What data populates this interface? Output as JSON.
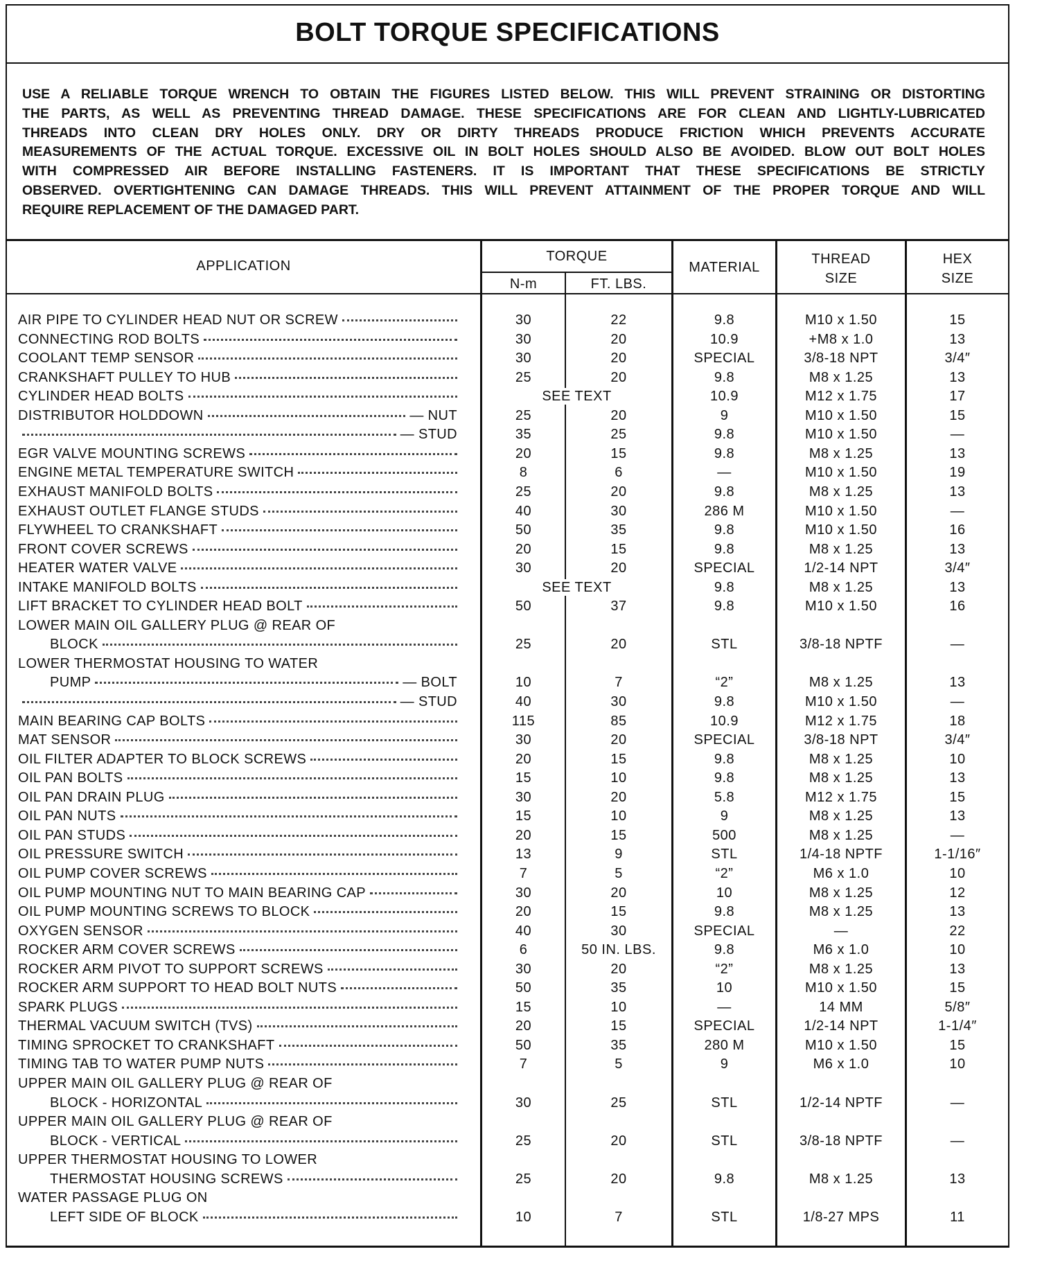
{
  "header": {
    "title": "BOLT TORQUE SPECIFICATIONS",
    "intro": [
      "USE A RELIABLE TORQUE WRENCH TO OBTAIN THE FIGURES LISTED BELOW. THIS WILL PREVENT STRAINING OR DISTORTING",
      "THE PARTS, AS WELL AS PREVENTING THREAD DAMAGE. THESE SPECIFICATIONS ARE FOR CLEAN AND LIGHTLY-LUBRICATED",
      "THREADS INTO CLEAN DRY HOLES ONLY. DRY OR DIRTY THREADS PRODUCE FRICTION WHICH PREVENTS ACCURATE",
      "MEASUREMENTS OF THE ACTUAL TORQUE. EXCESSIVE OIL IN BOLT HOLES SHOULD ALSO BE AVOIDED. BLOW OUT BOLT HOLES",
      "WITH COMPRESSED AIR BEFORE INSTALLING FASTENERS. IT IS IMPORTANT THAT THESE SPECIFICATIONS BE STRICTLY",
      "OBSERVED. OVERTIGHTENING CAN DAMAGE THREADS. THIS WILL PREVENT ATTAINMENT OF THE PROPER TORQUE AND WILL",
      "REQUIRE REPLACEMENT OF THE DAMAGED PART."
    ]
  },
  "table": {
    "columns": {
      "application": "APPLICATION",
      "torque": "TORQUE",
      "nm": "N-m",
      "ft_lbs": "FT. LBS.",
      "material": "MATERIAL",
      "thread_size": [
        "THREAD",
        "SIZE"
      ],
      "hex_size": [
        "HEX",
        "SIZE"
      ]
    },
    "rows": [
      {
        "application": [
          "AIR PIPE TO CYLINDER HEAD NUT OR SCREW"
        ],
        "nm": "30",
        "ft_lbs": "22",
        "material": "9.8",
        "thread_size": "M10 x 1.50",
        "hex_size": "15"
      },
      {
        "application": [
          "CONNECTING ROD BOLTS"
        ],
        "nm": "30",
        "ft_lbs": "20",
        "material": "10.9",
        "thread_size": "+M8 x 1.0",
        "hex_size": "13"
      },
      {
        "application": [
          "COOLANT TEMP SENSOR"
        ],
        "nm": "30",
        "ft_lbs": "20",
        "material": "SPECIAL",
        "thread_size": "3/8-18 NPT",
        "hex_size": "3/4″"
      },
      {
        "application": [
          "CRANKSHAFT PULLEY TO HUB"
        ],
        "nm": "25",
        "ft_lbs": "20",
        "material": "9.8",
        "thread_size": "M8 x 1.25",
        "hex_size": "13"
      },
      {
        "application": [
          "CYLINDER HEAD BOLTS"
        ],
        "torque": "SEE TEXT",
        "material": "10.9",
        "thread_size": "M12 x 1.75",
        "hex_size": "17"
      },
      {
        "application": [
          "DISTRIBUTOR HOLDDOWN"
        ],
        "part": "— NUT",
        "nm": "25",
        "ft_lbs": "20",
        "material": "9",
        "thread_size": "M10 x 1.50",
        "hex_size": "15"
      },
      {
        "part": "— STUD",
        "nm": "35",
        "ft_lbs": "25",
        "material": "9.8",
        "thread_size": "M10 x 1.50",
        "hex_size": "—"
      },
      {
        "application": [
          "EGR VALVE MOUNTING SCREWS"
        ],
        "nm": "20",
        "ft_lbs": "15",
        "material": "9.8",
        "thread_size": "M8 x 1.25",
        "hex_size": "13"
      },
      {
        "application": [
          "ENGINE METAL TEMPERATURE SWITCH"
        ],
        "nm": "8",
        "ft_lbs": "6",
        "material": "—",
        "thread_size": "M10 x 1.50",
        "hex_size": "19"
      },
      {
        "application": [
          "EXHAUST MANIFOLD BOLTS"
        ],
        "nm": "25",
        "ft_lbs": "20",
        "material": "9.8",
        "thread_size": "M8 x 1.25",
        "hex_size": "13"
      },
      {
        "application": [
          "EXHAUST OUTLET FLANGE STUDS"
        ],
        "nm": "40",
        "ft_lbs": "30",
        "material": "286 M",
        "thread_size": "M10 x 1.50",
        "hex_size": "—"
      },
      {
        "application": [
          "FLYWHEEL TO CRANKSHAFT"
        ],
        "nm": "50",
        "ft_lbs": "35",
        "material": "9.8",
        "thread_size": "M10 x 1.50",
        "hex_size": "16"
      },
      {
        "application": [
          "FRONT COVER SCREWS"
        ],
        "nm": "20",
        "ft_lbs": "15",
        "material": "9.8",
        "thread_size": "M8 x 1.25",
        "hex_size": "13"
      },
      {
        "application": [
          "HEATER WATER VALVE"
        ],
        "nm": "30",
        "ft_lbs": "20",
        "material": "SPECIAL",
        "thread_size": "1/2-14 NPT",
        "hex_size": "3/4″"
      },
      {
        "application": [
          "INTAKE MANIFOLD BOLTS"
        ],
        "torque": "SEE TEXT",
        "material": "9.8",
        "thread_size": "M8 x 1.25",
        "hex_size": "13"
      },
      {
        "application": [
          "LIFT BRACKET TO CYLINDER HEAD BOLT"
        ],
        "nm": "50",
        "ft_lbs": "37",
        "material": "9.8",
        "thread_size": "M10 x 1.50",
        "hex_size": "16"
      },
      {
        "application": [
          "LOWER MAIN OIL GALLERY PLUG @ REAR OF",
          "BLOCK"
        ],
        "nm": "25",
        "ft_lbs": "20",
        "material": "STL",
        "thread_size": "3/8-18 NPTF",
        "hex_size": "—"
      },
      {
        "application": [
          "LOWER THERMOSTAT HOUSING TO WATER",
          "PUMP"
        ],
        "part": "— BOLT",
        "nm": "10",
        "ft_lbs": "7",
        "material": "“2”",
        "thread_size": "M8 x 1.25",
        "hex_size": "13"
      },
      {
        "part": "— STUD",
        "nm": "40",
        "ft_lbs": "30",
        "material": "9.8",
        "thread_size": "M10 x 1.50",
        "hex_size": "—"
      },
      {
        "application": [
          "MAIN BEARING CAP BOLTS"
        ],
        "nm": "115",
        "ft_lbs": "85",
        "material": "10.9",
        "thread_size": "M12 x 1.75",
        "hex_size": "18"
      },
      {
        "application": [
          "MAT SENSOR"
        ],
        "nm": "30",
        "ft_lbs": "20",
        "material": "SPECIAL",
        "thread_size": "3/8-18 NPT",
        "hex_size": "3/4″"
      },
      {
        "application": [
          "OIL FILTER ADAPTER TO BLOCK SCREWS"
        ],
        "nm": "20",
        "ft_lbs": "15",
        "material": "9.8",
        "thread_size": "M8 x 1.25",
        "hex_size": "10"
      },
      {
        "application": [
          "OIL PAN BOLTS"
        ],
        "nm": "15",
        "ft_lbs": "10",
        "material": "9.8",
        "thread_size": "M8 x 1.25",
        "hex_size": "13"
      },
      {
        "application": [
          "OIL PAN DRAIN PLUG"
        ],
        "nm": "30",
        "ft_lbs": "20",
        "material": "5.8",
        "thread_size": "M12 x 1.75",
        "hex_size": "15"
      },
      {
        "application": [
          "OIL PAN NUTS"
        ],
        "nm": "15",
        "ft_lbs": "10",
        "material": "9",
        "thread_size": "M8 x 1.25",
        "hex_size": "13"
      },
      {
        "application": [
          "OIL PAN STUDS"
        ],
        "nm": "20",
        "ft_lbs": "15",
        "material": "500",
        "thread_size": "M8 x 1.25",
        "hex_size": "—"
      },
      {
        "application": [
          "OIL PRESSURE SWITCH"
        ],
        "nm": "13",
        "ft_lbs": "9",
        "material": "STL",
        "thread_size": "1/4-18 NPTF",
        "hex_size": "1-1/16″"
      },
      {
        "application": [
          "OIL PUMP COVER SCREWS"
        ],
        "nm": "7",
        "ft_lbs": "5",
        "material": "“2”",
        "thread_size": "M6 x 1.0",
        "hex_size": "10"
      },
      {
        "application": [
          "OIL PUMP MOUNTING NUT TO MAIN BEARING CAP"
        ],
        "nm": "30",
        "ft_lbs": "20",
        "material": "10",
        "thread_size": "M8 x 1.25",
        "hex_size": "12"
      },
      {
        "application": [
          "OIL PUMP MOUNTING SCREWS TO BLOCK"
        ],
        "nm": "20",
        "ft_lbs": "15",
        "material": "9.8",
        "thread_size": "M8 x 1.25",
        "hex_size": "13"
      },
      {
        "application": [
          "OXYGEN SENSOR"
        ],
        "nm": "40",
        "ft_lbs": "30",
        "material": "SPECIAL",
        "thread_size": "—",
        "hex_size": "22"
      },
      {
        "application": [
          "ROCKER ARM COVER SCREWS"
        ],
        "nm": "6",
        "ft_lbs": "50 IN. LBS.",
        "material": "9.8",
        "thread_size": "M6 x 1.0",
        "hex_size": "10"
      },
      {
        "application": [
          "ROCKER ARM PIVOT TO SUPPORT SCREWS"
        ],
        "nm": "30",
        "ft_lbs": "20",
        "material": "“2”",
        "thread_size": "M8 x 1.25",
        "hex_size": "13"
      },
      {
        "application": [
          "ROCKER ARM SUPPORT TO HEAD BOLT NUTS"
        ],
        "nm": "50",
        "ft_lbs": "35",
        "material": "10",
        "thread_size": "M10 x 1.50",
        "hex_size": "15"
      },
      {
        "application": [
          "SPARK PLUGS"
        ],
        "nm": "15",
        "ft_lbs": "10",
        "material": "—",
        "thread_size": "14 MM",
        "hex_size": "5/8″"
      },
      {
        "application": [
          "THERMAL VACUUM SWITCH (TVS)"
        ],
        "nm": "20",
        "ft_lbs": "15",
        "material": "SPECIAL",
        "thread_size": "1/2-14 NPT",
        "hex_size": "1-1/4″"
      },
      {
        "application": [
          "TIMING SPROCKET TO CRANKSHAFT"
        ],
        "nm": "50",
        "ft_lbs": "35",
        "material": "280 M",
        "thread_size": "M10 x 1.50",
        "hex_size": "15"
      },
      {
        "application": [
          "TIMING TAB TO WATER PUMP NUTS"
        ],
        "nm": "7",
        "ft_lbs": "5",
        "material": "9",
        "thread_size": "M6 x 1.0",
        "hex_size": "10"
      },
      {
        "application": [
          "UPPER MAIN OIL GALLERY PLUG @ REAR OF",
          "BLOCK - HORIZONTAL"
        ],
        "nm": "30",
        "ft_lbs": "25",
        "material": "STL",
        "thread_size": "1/2-14 NPTF",
        "hex_size": "—"
      },
      {
        "application": [
          "UPPER MAIN OIL GALLERY PLUG @ REAR OF",
          "BLOCK - VERTICAL"
        ],
        "nm": "25",
        "ft_lbs": "20",
        "material": "STL",
        "thread_size": "3/8-18 NPTF",
        "hex_size": "—"
      },
      {
        "application": [
          "UPPER THERMOSTAT HOUSING TO LOWER",
          "THERMOSTAT HOUSING SCREWS"
        ],
        "nm": "25",
        "ft_lbs": "20",
        "material": "9.8",
        "thread_size": "M8 x 1.25",
        "hex_size": "13"
      },
      {
        "application": [
          "WATER PASSAGE PLUG ON",
          "LEFT SIDE OF BLOCK"
        ],
        "nm": "10",
        "ft_lbs": "7",
        "material": "STL",
        "thread_size": "1/8-27 MPS",
        "hex_size": "11"
      }
    ]
  }
}
